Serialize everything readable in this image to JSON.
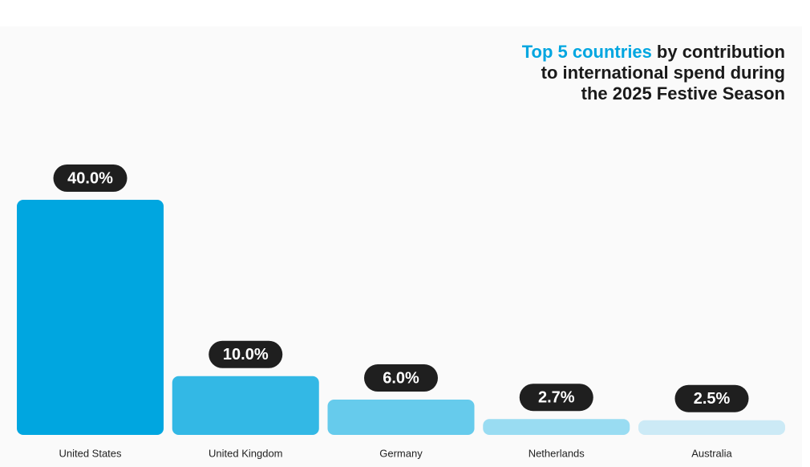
{
  "chart_data": {
    "type": "bar",
    "title_highlight": "Top 5 countries",
    "title": [
      "by contribution",
      "to international spend during",
      "the 2025 Festive Season"
    ],
    "highlight_color": "#00a6e0",
    "categories": [
      "United States",
      "United Kingdom",
      "Germany",
      "Netherlands",
      "Australia"
    ],
    "values": [
      40,
      10,
      6,
      2.7,
      2.5
    ],
    "value_labels": [
      "40.0%",
      "10.0%",
      "6.0%",
      "2.7%",
      "2.5%"
    ],
    "colors": [
      "#00a6e0",
      "#33b8e5",
      "#66cbec",
      "#99dcf2",
      "#cceaf6"
    ]
  }
}
